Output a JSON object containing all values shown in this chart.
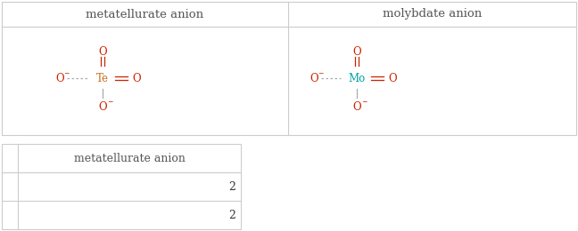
{
  "top_table": {
    "col1_header": "metatellurate anion",
    "col2_header": "molybdate anion",
    "border_color": "#cccccc",
    "header_color": "#555555",
    "header_fontsize": 9.5
  },
  "bottom_table": {
    "col2_header": "metatellurate anion",
    "row1": "2",
    "row2": "2",
    "border_color": "#cccccc",
    "header_color": "#555555",
    "value_color": "#333333",
    "header_fontsize": 9,
    "value_fontsize": 9
  },
  "te_color": "#c87020",
  "mo_color": "#00a0a0",
  "o_color": "#cc2200",
  "bond_color": "#aaaaaa",
  "struct_fontsize": 8.5
}
